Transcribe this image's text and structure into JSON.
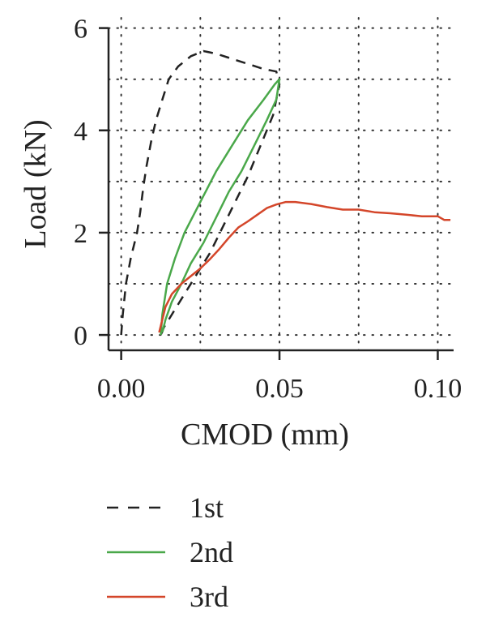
{
  "chart_data": {
    "type": "line",
    "xlabel": "CMOD (mm)",
    "ylabel": "Load (kN)",
    "xlim": [
      -0.004,
      0.105
    ],
    "ylim": [
      -0.3,
      6.2
    ],
    "x_ticks": [
      0.0,
      0.05,
      0.1
    ],
    "x_tick_labels": [
      "0.00",
      "0.05",
      "0.10"
    ],
    "y_ticks": [
      0,
      2,
      4,
      6
    ],
    "y_tick_labels": [
      "0",
      "2",
      "4",
      "6"
    ],
    "grid": true,
    "legend_position": "bottom",
    "series": [
      {
        "name": "1st",
        "color": "#222222",
        "style": "dashed",
        "x": [
          0.0,
          0.0005,
          0.0015,
          0.003,
          0.005,
          0.006,
          0.007,
          0.008,
          0.0095,
          0.011,
          0.013,
          0.015,
          0.018,
          0.022,
          0.026,
          0.03,
          0.035,
          0.04,
          0.045,
          0.049,
          0.05,
          0.048,
          0.044,
          0.04,
          0.036,
          0.032,
          0.028,
          0.024,
          0.02,
          0.017,
          0.015,
          0.0135,
          0.0125
        ],
        "y": [
          0.0,
          0.4,
          1.0,
          1.5,
          2.0,
          2.4,
          2.9,
          3.3,
          3.8,
          4.2,
          4.6,
          5.0,
          5.25,
          5.45,
          5.55,
          5.5,
          5.4,
          5.3,
          5.2,
          5.15,
          4.9,
          4.3,
          3.7,
          3.1,
          2.6,
          2.1,
          1.6,
          1.2,
          0.8,
          0.5,
          0.3,
          0.15,
          0.0
        ]
      },
      {
        "name": "2nd",
        "color": "#4aa84a",
        "style": "solid",
        "x": [
          0.0125,
          0.013,
          0.0145,
          0.017,
          0.02,
          0.025,
          0.03,
          0.035,
          0.04,
          0.045,
          0.0485,
          0.05,
          0.049,
          0.046,
          0.042,
          0.038,
          0.034,
          0.03,
          0.026,
          0.022,
          0.019,
          0.016,
          0.014,
          0.013
        ],
        "y": [
          0.0,
          0.4,
          1.0,
          1.5,
          2.0,
          2.6,
          3.2,
          3.7,
          4.2,
          4.6,
          4.9,
          5.0,
          4.6,
          4.2,
          3.7,
          3.2,
          2.8,
          2.3,
          1.8,
          1.4,
          1.0,
          0.65,
          0.3,
          0.05
        ]
      },
      {
        "name": "3rd",
        "color": "#d4462a",
        "style": "solid",
        "x": [
          0.012,
          0.013,
          0.014,
          0.016,
          0.019,
          0.022,
          0.025,
          0.028,
          0.031,
          0.034,
          0.037,
          0.04,
          0.043,
          0.046,
          0.049,
          0.052,
          0.055,
          0.06,
          0.065,
          0.07,
          0.075,
          0.08,
          0.085,
          0.09,
          0.095,
          0.1,
          0.102,
          0.104
        ],
        "y": [
          0.05,
          0.3,
          0.55,
          0.8,
          1.0,
          1.15,
          1.3,
          1.48,
          1.68,
          1.9,
          2.1,
          2.22,
          2.35,
          2.48,
          2.55,
          2.6,
          2.6,
          2.56,
          2.5,
          2.45,
          2.45,
          2.4,
          2.38,
          2.35,
          2.32,
          2.32,
          2.25,
          2.25
        ]
      }
    ]
  }
}
